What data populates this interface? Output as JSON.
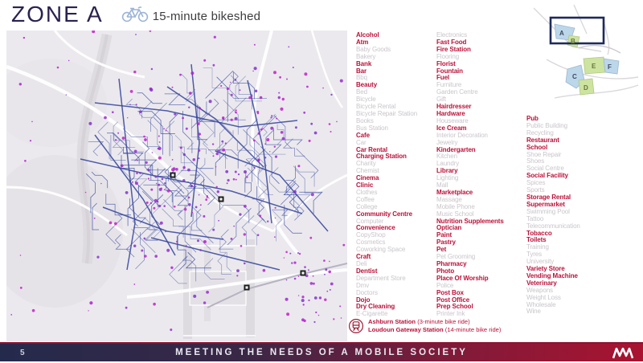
{
  "header": {
    "title": "ZONE A",
    "subtitle": "15-minute bikeshed"
  },
  "inset_map": {
    "zones": [
      "A",
      "B",
      "C",
      "D",
      "E",
      "F"
    ],
    "highlighted_zone": "A"
  },
  "amenities": {
    "columns": [
      {
        "items": [
          {
            "label": "Alcohol",
            "available": true
          },
          {
            "label": "Atm",
            "available": true
          },
          {
            "label": "Baby Goods",
            "available": false
          },
          {
            "label": "Bakery",
            "available": false
          },
          {
            "label": "Bank",
            "available": true
          },
          {
            "label": "Bar",
            "available": true
          },
          {
            "label": "Bbq",
            "available": false
          },
          {
            "label": "Beauty",
            "available": true
          },
          {
            "label": "Bed",
            "available": false
          },
          {
            "label": "Bicycle",
            "available": false
          },
          {
            "label": "Bicycle Rental",
            "available": false
          },
          {
            "label": "Bicycle Repair Station",
            "available": false
          },
          {
            "label": "Books",
            "available": false
          },
          {
            "label": "Bus Station",
            "available": false
          },
          {
            "label": "Cafe",
            "available": true
          },
          {
            "label": "Car",
            "available": false
          },
          {
            "label": "Car Rental",
            "available": true
          },
          {
            "label": "Charging Station",
            "available": true
          },
          {
            "label": "Charity",
            "available": false
          },
          {
            "label": "Chemist",
            "available": false
          },
          {
            "label": "Cinema",
            "available": true
          },
          {
            "label": "Clinic",
            "available": true
          },
          {
            "label": "Clothes",
            "available": false
          },
          {
            "label": "Coffee",
            "available": false
          },
          {
            "label": "College",
            "available": false
          },
          {
            "label": "Community Centre",
            "available": true
          },
          {
            "label": "Computer",
            "available": false
          },
          {
            "label": "Convenience",
            "available": true
          },
          {
            "label": "CopyShop",
            "available": false
          },
          {
            "label": "Cosmetics",
            "available": false
          },
          {
            "label": "Coworking Space",
            "available": false
          },
          {
            "label": "Craft",
            "available": true
          },
          {
            "label": "Deli",
            "available": false
          },
          {
            "label": "Dentist",
            "available": true
          },
          {
            "label": "Department Store",
            "available": false
          },
          {
            "label": "Dmv",
            "available": false
          },
          {
            "label": "Doctors",
            "available": false
          },
          {
            "label": "Dojo",
            "available": true
          },
          {
            "label": "Dry Cleaning",
            "available": true
          },
          {
            "label": "E-Cigarette",
            "available": false
          }
        ]
      },
      {
        "items": [
          {
            "label": "Electronics",
            "available": false
          },
          {
            "label": "Fast Food",
            "available": true
          },
          {
            "label": "Fire Station",
            "available": true
          },
          {
            "label": "Flooring",
            "available": false
          },
          {
            "label": "Florist",
            "available": true
          },
          {
            "label": "Fountain",
            "available": true
          },
          {
            "label": "Fuel",
            "available": true
          },
          {
            "label": "Furniture",
            "available": false
          },
          {
            "label": "Garden Centre",
            "available": false
          },
          {
            "label": "Gift",
            "available": false
          },
          {
            "label": "Hairdresser",
            "available": true
          },
          {
            "label": "Hardware",
            "available": true
          },
          {
            "label": "Houseware",
            "available": false
          },
          {
            "label": "Ice Cream",
            "available": true
          },
          {
            "label": "Interior Decoration",
            "available": false
          },
          {
            "label": "Jewelry",
            "available": false
          },
          {
            "label": "Kindergarten",
            "available": true
          },
          {
            "label": "Kitchen",
            "available": false
          },
          {
            "label": "Laundry",
            "available": false
          },
          {
            "label": "Library",
            "available": true
          },
          {
            "label": "Lighting",
            "available": false
          },
          {
            "label": "Mall",
            "available": false
          },
          {
            "label": "Marketplace",
            "available": true
          },
          {
            "label": "Massage",
            "available": false
          },
          {
            "label": "Mobile Phone",
            "available": false
          },
          {
            "label": "Music School",
            "available": false
          },
          {
            "label": "Nutrition Supplements",
            "available": true
          },
          {
            "label": "Optician",
            "available": true
          },
          {
            "label": "Paint",
            "available": true
          },
          {
            "label": "Pastry",
            "available": true
          },
          {
            "label": "Pet",
            "available": true
          },
          {
            "label": "Pet Grooming",
            "available": false
          },
          {
            "label": "Pharmacy",
            "available": true
          },
          {
            "label": "Photo",
            "available": true
          },
          {
            "label": "Place Of Worship",
            "available": true
          },
          {
            "label": "Police",
            "available": false
          },
          {
            "label": "Post Box",
            "available": true
          },
          {
            "label": "Post Office",
            "available": true
          },
          {
            "label": "Prep School",
            "available": true
          },
          {
            "label": "Printer Ink",
            "available": false
          }
        ]
      },
      {
        "items": [
          {
            "label": "Pub",
            "available": true
          },
          {
            "label": "Public Building",
            "available": false
          },
          {
            "label": "Recycling",
            "available": false
          },
          {
            "label": "Restaurant",
            "available": true
          },
          {
            "label": "School",
            "available": true
          },
          {
            "label": "Shoe Repair",
            "available": false
          },
          {
            "label": "Shoes",
            "available": false
          },
          {
            "label": "Social Centre",
            "available": false
          },
          {
            "label": "Social Facility",
            "available": true
          },
          {
            "label": "Spices",
            "available": false
          },
          {
            "label": "Sports",
            "available": false
          },
          {
            "label": "Storage Rental",
            "available": true
          },
          {
            "label": "Supermarket",
            "available": true
          },
          {
            "label": "Swimming Pool",
            "available": false
          },
          {
            "label": "Tattoo",
            "available": false
          },
          {
            "label": "Telecommunication",
            "available": false
          },
          {
            "label": "Tobacco",
            "available": true
          },
          {
            "label": "Toilets",
            "available": true
          },
          {
            "label": "Training",
            "available": false
          },
          {
            "label": "Tyres",
            "available": false
          },
          {
            "label": "University",
            "available": false
          },
          {
            "label": "Variety Store",
            "available": true
          },
          {
            "label": "Vending Machine",
            "available": true
          },
          {
            "label": "Veterinary",
            "available": true
          },
          {
            "label": "Weapons",
            "available": false
          },
          {
            "label": "Weight Loss",
            "available": false
          },
          {
            "label": "Wholesale",
            "available": false
          },
          {
            "label": "Wine",
            "available": false
          }
        ]
      }
    ]
  },
  "legend": {
    "stations": [
      {
        "name": "Ashburn Station",
        "note": "(3-minute bike ride)"
      },
      {
        "name": "Loudoun Gateway Station",
        "note": "(14-minute bike ride)"
      }
    ]
  },
  "footer": {
    "page_number": "5",
    "title": "MEETING THE NEEDS OF A MOBILE SOCIETY"
  },
  "colors": {
    "available": "#bc1038",
    "unavailable": "#c9c5cb",
    "title": "#2b2150",
    "map_network": "#3c4ca2",
    "poi_dot": "#9d2bd2",
    "footer_left": "#242a4c",
    "footer_right": "#a91430"
  }
}
